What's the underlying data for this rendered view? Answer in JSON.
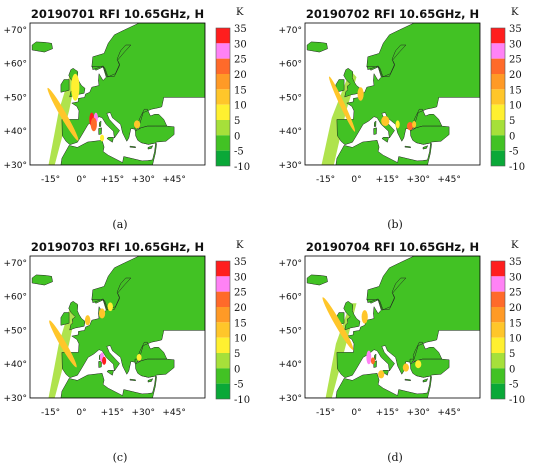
{
  "colors": {
    "ocean": "#ffffff",
    "land_base": "#42c224",
    "coast_line": "#222222"
  },
  "colorbar": {
    "unit": "K",
    "tick_labels": [
      "35",
      "30",
      "25",
      "20",
      "15",
      "10",
      "5",
      "0",
      "-5",
      "-10"
    ],
    "bins": [
      {
        "from": 30,
        "to": 35,
        "color": "#ff1e1e"
      },
      {
        "from": 25,
        "to": 30,
        "color": "#ff82f5"
      },
      {
        "from": 20,
        "to": 25,
        "color": "#ff6a2a"
      },
      {
        "from": 15,
        "to": 20,
        "color": "#ff9a26"
      },
      {
        "from": 10,
        "to": 15,
        "color": "#ffc62a"
      },
      {
        "from": 5,
        "to": 10,
        "color": "#fff030"
      },
      {
        "from": 0,
        "to": 5,
        "color": "#a6e03a"
      },
      {
        "from": -5,
        "to": 0,
        "color": "#42c224"
      },
      {
        "from": -10,
        "to": -5,
        "color": "#0aa838"
      }
    ]
  },
  "axes": {
    "x_ticks": [
      "-15°",
      "0°",
      "+15°",
      "+30°",
      "+45°"
    ],
    "y_ticks": [
      "+70°",
      "+60°",
      "+50°",
      "+40°",
      "+30°"
    ],
    "xlim": [
      -25,
      60
    ],
    "ylim": [
      30,
      72
    ]
  },
  "chart_data": [
    {
      "type": "heatmap",
      "title": "20190701 RFI 10.65GHz, H",
      "caption": "(a)",
      "unit": "K"
    },
    {
      "type": "heatmap",
      "title": "20190702 RFI 10.65GHz, H",
      "caption": "(b)",
      "unit": "K"
    },
    {
      "type": "heatmap",
      "title": "20190703 RFI 10.65GHz, H",
      "caption": "(c)",
      "unit": "K"
    },
    {
      "type": "heatmap",
      "title": "20190704 RFI 10.65GHz, H",
      "caption": "(d)",
      "unit": "K"
    }
  ]
}
